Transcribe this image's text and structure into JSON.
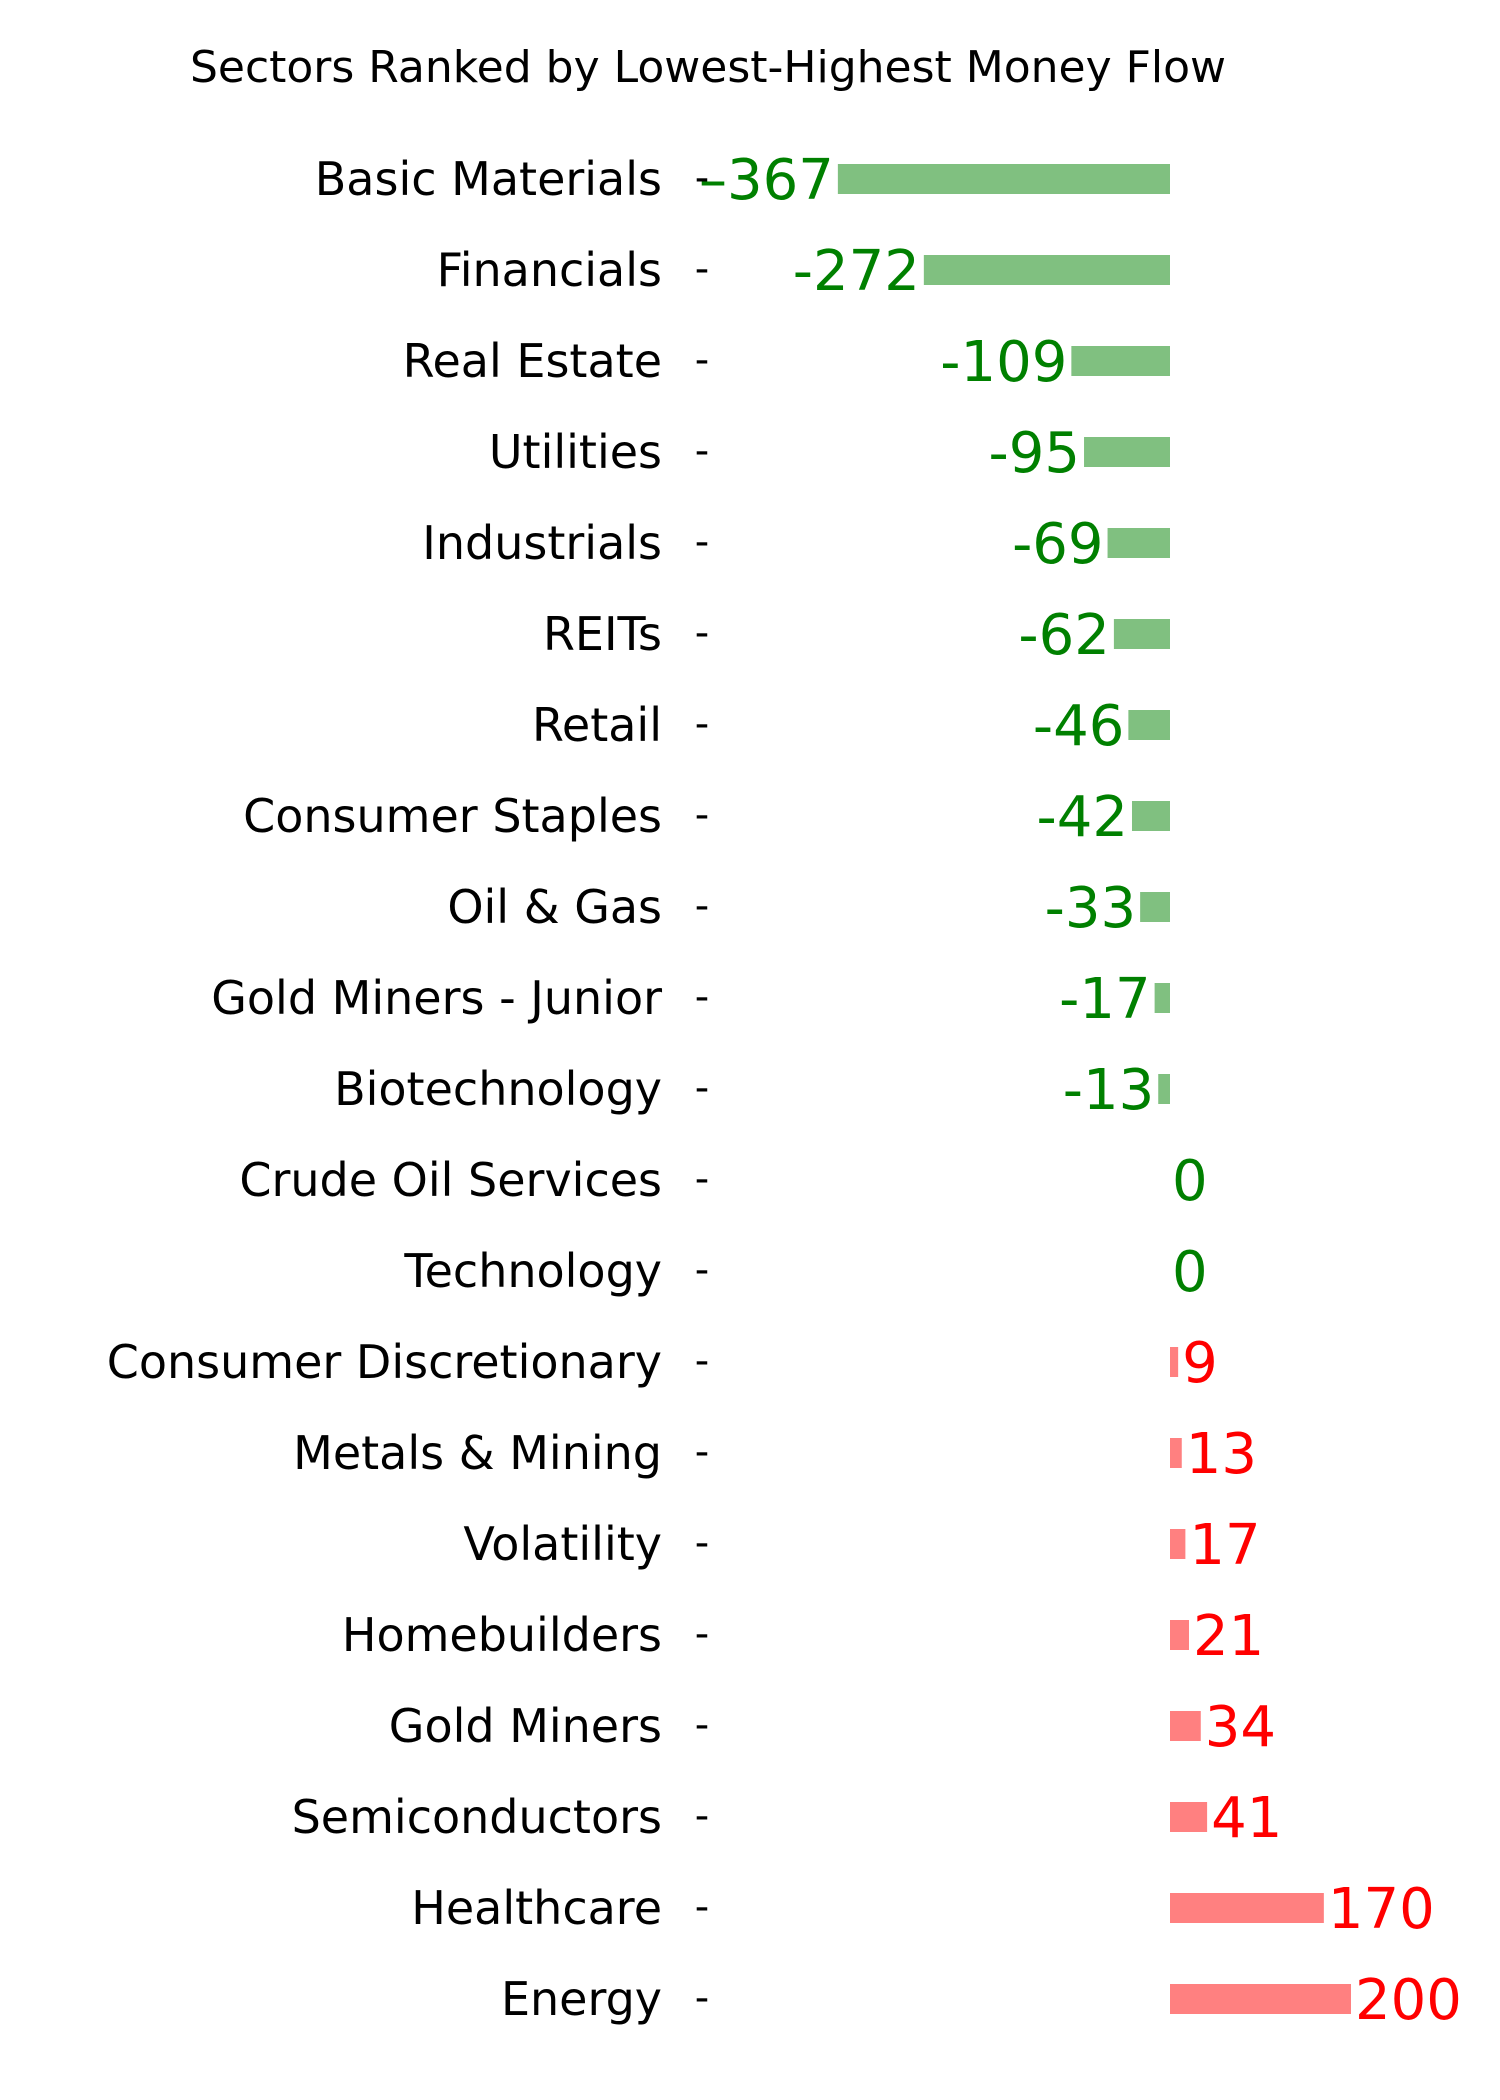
{
  "chart_data": {
    "type": "bar",
    "orientation": "horizontal",
    "title": "Sectors Ranked by Lowest-Highest Money Flow",
    "xlabel": "",
    "ylabel": "",
    "grid": false,
    "legend": "none",
    "colors": {
      "negative_bar": "#80c080",
      "negative_label": "#008000",
      "positive_bar": "#ff8080",
      "positive_label": "#ff0000",
      "text": "#000000"
    },
    "categories": [
      "Basic Materials",
      "Financials",
      "Real Estate",
      "Utilities",
      "Industrials",
      "REITs",
      "Retail",
      "Consumer Staples",
      "Oil & Gas",
      "Gold Miners - Junior",
      "Biotechnology",
      "Crude Oil Services",
      "Technology",
      "Consumer Discretionary",
      "Metals & Mining",
      "Volatility",
      "Homebuilders",
      "Gold Miners",
      "Semiconductors",
      "Healthcare",
      "Energy"
    ],
    "values": [
      -367,
      -272,
      -109,
      -95,
      -69,
      -62,
      -46,
      -42,
      -33,
      -17,
      -13,
      0,
      0,
      9,
      13,
      17,
      21,
      34,
      41,
      170,
      200
    ],
    "value_labels": [
      "–367",
      "-272",
      "-109",
      "-95",
      "-69",
      "-62",
      "-46",
      "-42",
      "-33",
      "-17",
      "-13",
      "0",
      "0",
      "9",
      "13",
      "17",
      "21",
      "34",
      "41",
      "170",
      "200"
    ],
    "tick_mark": "-"
  }
}
